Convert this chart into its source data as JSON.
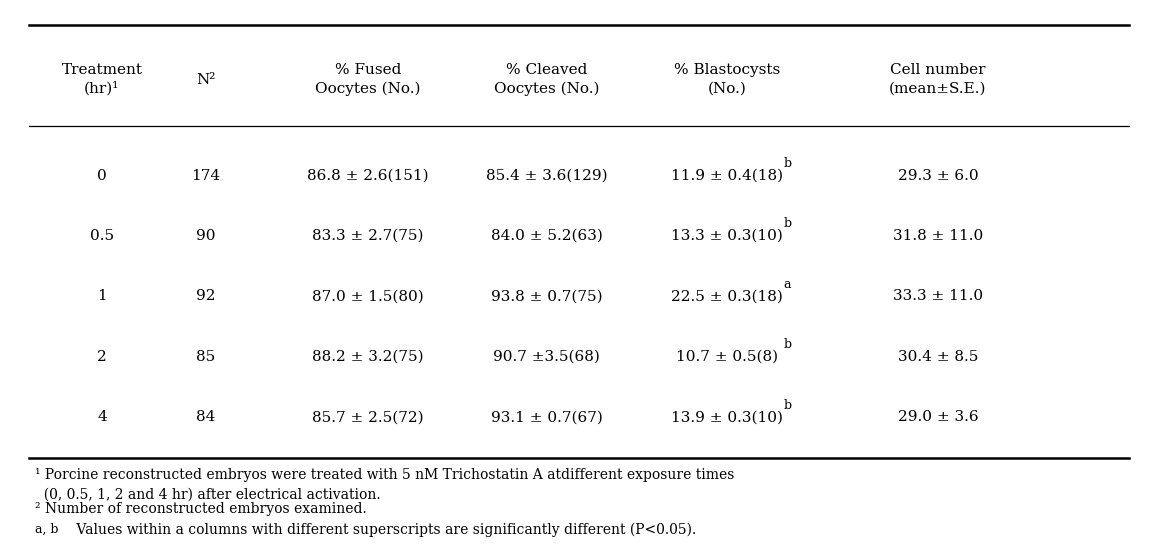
{
  "col_headers": [
    "Treatment\n(hr)¹",
    "N²",
    "% Fused\nOocytes (No.)",
    "% Cleaved\nOocytes (No.)",
    "% Blastocysts\n(No.)",
    "Cell number\n(mean±S.E.)"
  ],
  "rows": [
    [
      "0",
      "174",
      "86.8 ± 2.6(151)",
      "85.4 ± 3.6(129)",
      "11.9 ± 0.4(18)^b",
      "29.3 ± 6.0"
    ],
    [
      "0.5",
      "90",
      "83.3 ± 2.7(75)",
      "84.0 ± 5.2(63)",
      "13.3 ± 0.3(10)^b",
      "31.8 ± 11.0"
    ],
    [
      "1",
      "92",
      "87.0 ± 1.5(80)",
      "93.8 ± 0.7(75)",
      "22.5 ± 0.3(18)^a",
      "33.3 ± 11.0"
    ],
    [
      "2",
      "85",
      "88.2 ± 3.2(75)",
      "90.7 ±3.5(68)",
      "10.7 ± 0.5(8)^b",
      "30.4 ± 8.5"
    ],
    [
      "4",
      "84",
      "85.7 ± 2.5(72)",
      "93.1 ± 0.7(67)",
      "13.9 ± 0.3(10)^b",
      "29.0 ± 3.6"
    ]
  ],
  "footnote1": "¹ Porcine reconstructed embryos were treated with 5 nM Trichostatin A atdifferent exposure times\n  (0, 0.5, 1, 2 and 4 hr) after electrical activation.",
  "footnote2": "² Number of reconstructed embryos examined.",
  "footnote3": "a, b Values within a columns with different superscripts are significantly different (P<0.05).",
  "footnote3_prefix": "a, b",
  "bg_color": "#ffffff",
  "text_color": "#000000",
  "line_color": "#000000",
  "font_size": 11,
  "header_font_size": 11,
  "footnote_font_size": 10
}
